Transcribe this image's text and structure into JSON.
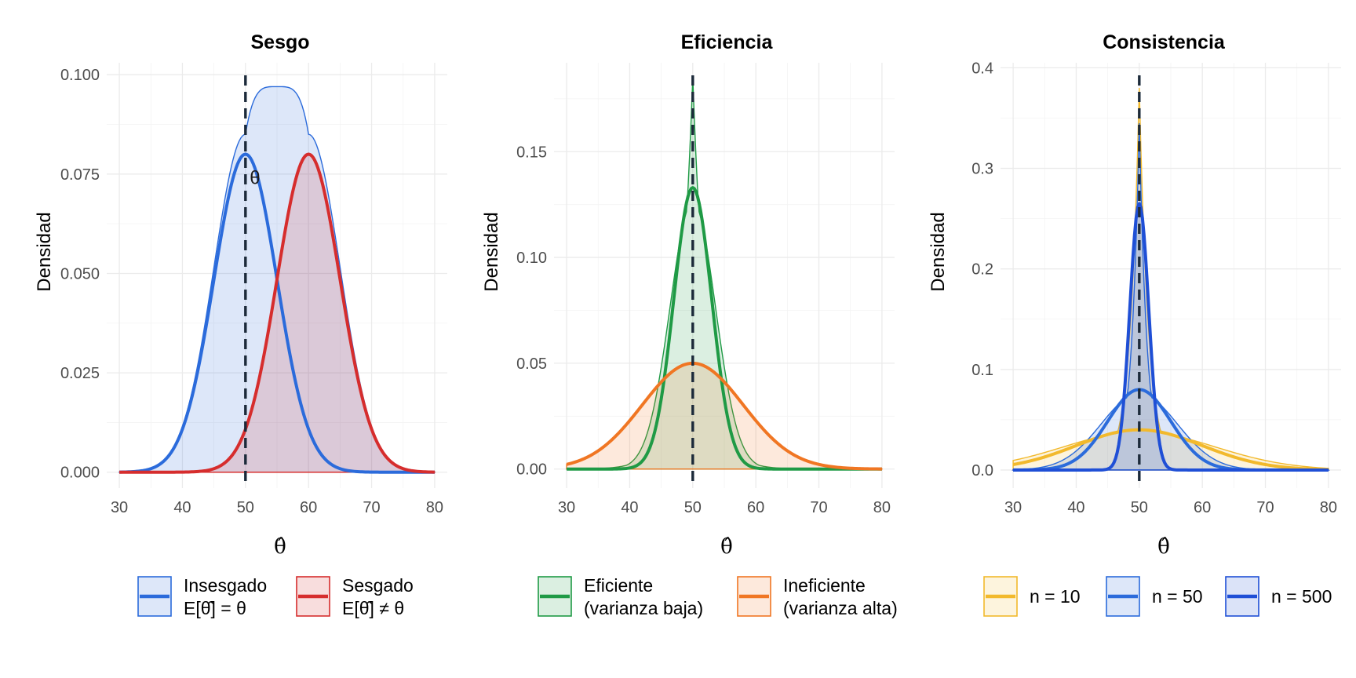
{
  "chart_data": [
    {
      "type": "area",
      "title": "Sesgo",
      "xlabel": "θ̂",
      "ylabel": "Densidad",
      "xlim": [
        28,
        82
      ],
      "ylim": [
        -0.004,
        0.103
      ],
      "xticks": [
        30,
        40,
        50,
        60,
        70,
        80
      ],
      "x_tick_labels": [
        "30",
        "40",
        "50",
        "60",
        "70",
        "80"
      ],
      "yticks": [
        0,
        0.025,
        0.05,
        0.075,
        0.1
      ],
      "y_tick_labels": [
        "0.000",
        "0.025",
        "0.050",
        "0.075",
        "0.100"
      ],
      "grid": true,
      "legend_position": "bottom",
      "reference_line": {
        "x": 50,
        "style": "dashed",
        "color": "#1c2a3a"
      },
      "annotation": {
        "text": "θ",
        "x": 51.5,
        "y": 0.0745
      },
      "series": [
        {
          "name": "Insesgado\nE[θ̂] = θ",
          "color": "#2b6bdb",
          "fill": "#2b6bdb",
          "mean": 50,
          "sd": 5,
          "peak_density": 0.08,
          "x_range": [
            30,
            80
          ],
          "filled_envelope_peak": 0.097
        },
        {
          "name": "Sesgado\nE[θ̂] ≠ θ",
          "color": "#d62d2d",
          "fill": "#d62d2d",
          "mean": 60,
          "sd": 5,
          "peak_density": 0.08,
          "x_range": [
            30,
            80
          ]
        }
      ]
    },
    {
      "type": "area",
      "title": "Eficiencia",
      "xlabel": "θ̂",
      "ylabel": "Densidad",
      "xlim": [
        28,
        82
      ],
      "ylim": [
        -0.009,
        0.192
      ],
      "xticks": [
        30,
        40,
        50,
        60,
        70,
        80
      ],
      "x_tick_labels": [
        "30",
        "40",
        "50",
        "60",
        "70",
        "80"
      ],
      "yticks": [
        0,
        0.05,
        0.1,
        0.15
      ],
      "y_tick_labels": [
        "0.00",
        "0.05",
        "0.10",
        "0.15"
      ],
      "grid": true,
      "legend_position": "bottom",
      "reference_line": {
        "x": 50,
        "style": "dashed",
        "color": "#1c2a3a"
      },
      "series": [
        {
          "name": "Eficiente\n(varianza baja)",
          "color": "#1f9a45",
          "fill": "#1f9a45",
          "mean": 50,
          "sd": 3,
          "peak_density": 0.133,
          "filled_peak": 0.185,
          "x_range": [
            30,
            80
          ]
        },
        {
          "name": "Ineficiente\n(varianza alta)",
          "color": "#f07623",
          "fill": "#f07623",
          "mean": 50,
          "sd": 8,
          "peak_density": 0.05,
          "x_range": [
            30,
            80
          ]
        }
      ]
    },
    {
      "type": "area",
      "title": "Consistencia",
      "xlabel": "θ̂",
      "ylabel": "Densidad",
      "xlim": [
        28,
        82
      ],
      "ylim": [
        -0.018,
        0.405
      ],
      "xticks": [
        30,
        40,
        50,
        60,
        70,
        80
      ],
      "x_tick_labels": [
        "30",
        "40",
        "50",
        "60",
        "70",
        "80"
      ],
      "yticks": [
        0,
        0.1,
        0.2,
        0.3,
        0.4
      ],
      "y_tick_labels": [
        "0.0",
        "0.1",
        "0.2",
        "0.3",
        "0.4"
      ],
      "grid": true,
      "legend_position": "bottom",
      "reference_line": {
        "x": 50,
        "style": "dashed",
        "color": "#1c2a3a"
      },
      "series": [
        {
          "name": "n = 10",
          "color": "#f2b92c",
          "fill": "#f2b92c",
          "mean": 50,
          "sd": 10,
          "peak_density": 0.04,
          "filled_peak": 0.38,
          "x_range": [
            30,
            80
          ]
        },
        {
          "name": "n = 50",
          "color": "#2b6bdb",
          "fill": "#2b6bdb",
          "mean": 50,
          "sd": 5,
          "peak_density": 0.08,
          "filled_peak": 0.345,
          "x_range": [
            30,
            80
          ]
        },
        {
          "name": "n = 500",
          "color": "#1f4fd6",
          "fill": "#1f4fd6",
          "mean": 50,
          "sd": 1.5,
          "peak_density": 0.265,
          "x_range": [
            30,
            80
          ]
        }
      ]
    }
  ]
}
